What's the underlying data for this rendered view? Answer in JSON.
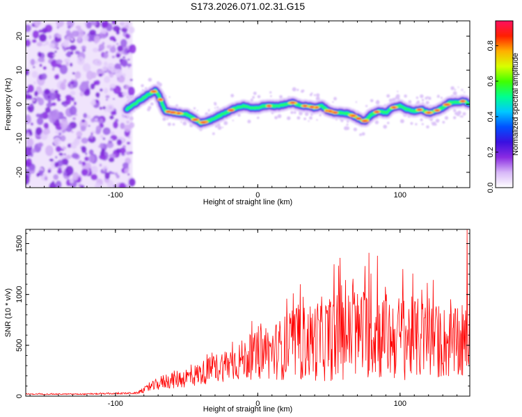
{
  "title": "S173.2026.071.02.31.G15",
  "chart_data": [
    {
      "type": "heatmap",
      "xlabel": "Height of straight line (km)",
      "ylabel": "Frequency (Hz)",
      "xlim": [
        -163,
        149
      ],
      "ylim": [
        -24.5,
        24.5
      ],
      "x_ticks": [
        -100,
        0,
        100
      ],
      "y_ticks": [
        -20,
        -10,
        0,
        10,
        20
      ],
      "colorbar": {
        "label": "Normalized spectral amplitude",
        "range": [
          0,
          0.94
        ],
        "ticks": [
          0.0,
          0.2,
          0.4,
          0.6,
          0.8
        ],
        "colors": [
          "#ffffff",
          "#d8b8f8",
          "#8a2be2",
          "#3a10e0",
          "#0050ff",
          "#00c8ff",
          "#00ff90",
          "#40ff00",
          "#d8ff00",
          "#ffb000",
          "#ff2000",
          "#ff1060"
        ]
      },
      "noise_region": {
        "x_range": [
          -163,
          -88
        ],
        "y_range": [
          -24.5,
          24.5
        ]
      },
      "ridge": {
        "x": [
          -92,
          -85,
          -78,
          -72,
          -70,
          -65,
          -58,
          -50,
          -44,
          -40,
          -35,
          -30,
          -25,
          -20,
          -15,
          -10,
          -5,
          0,
          5,
          10,
          15,
          20,
          25,
          30,
          35,
          40,
          45,
          50,
          55,
          60,
          65,
          70,
          75,
          80,
          85,
          90,
          95,
          100,
          105,
          110,
          115,
          120,
          125,
          130,
          135,
          140,
          145,
          149
        ],
        "y": [
          -1.5,
          0.5,
          2.5,
          4,
          3,
          -2,
          -2.5,
          -3,
          -4.5,
          -5.5,
          -5,
          -4,
          -3,
          -2,
          -1,
          -0.5,
          -1,
          -1,
          -0.5,
          -0.5,
          -0.5,
          0,
          0.5,
          -0.5,
          -0.5,
          -1,
          -0.5,
          -2,
          -2.5,
          -2.5,
          -3,
          -4,
          -5,
          -3,
          -2,
          -2.5,
          -1,
          -0.5,
          -1.5,
          -2,
          -1.5,
          -2.5,
          -2,
          -1,
          0.5,
          0.5,
          1,
          0
        ]
      }
    },
    {
      "type": "line",
      "xlabel": "Height of straight line (km)",
      "ylabel": "SNR (10 * v/v)",
      "xlim": [
        -163,
        149
      ],
      "ylim": [
        0,
        1640
      ],
      "x_ticks": [
        -100,
        0,
        100
      ],
      "y_ticks": [
        0,
        500,
        1000,
        1500
      ],
      "color": "#ff0000",
      "envelope": {
        "x": [
          -163,
          -120,
          -85,
          -75,
          -65,
          -55,
          -45,
          -35,
          -25,
          -15,
          -5,
          5,
          15,
          25,
          35,
          45,
          55,
          65,
          75,
          85,
          95,
          105,
          115,
          125,
          135,
          145,
          149
        ],
        "center": [
          20,
          20,
          30,
          90,
          150,
          170,
          200,
          250,
          300,
          340,
          380,
          420,
          460,
          500,
          530,
          560,
          580,
          600,
          620,
          600,
          580,
          570,
          560,
          540,
          520,
          480,
          500
        ],
        "spread": [
          5,
          6,
          10,
          45,
          80,
          95,
          110,
          130,
          160,
          190,
          220,
          260,
          300,
          360,
          380,
          420,
          430,
          440,
          450,
          440,
          430,
          420,
          400,
          380,
          360,
          350,
          300
        ]
      },
      "peaks": [
        {
          "x": 147,
          "y": 1640
        },
        {
          "x": 78,
          "y": 1410
        },
        {
          "x": 58,
          "y": 1360
        },
        {
          "x": 84,
          "y": 1380
        },
        {
          "x": 102,
          "y": 1250
        },
        {
          "x": 30,
          "y": 1100
        }
      ]
    }
  ]
}
